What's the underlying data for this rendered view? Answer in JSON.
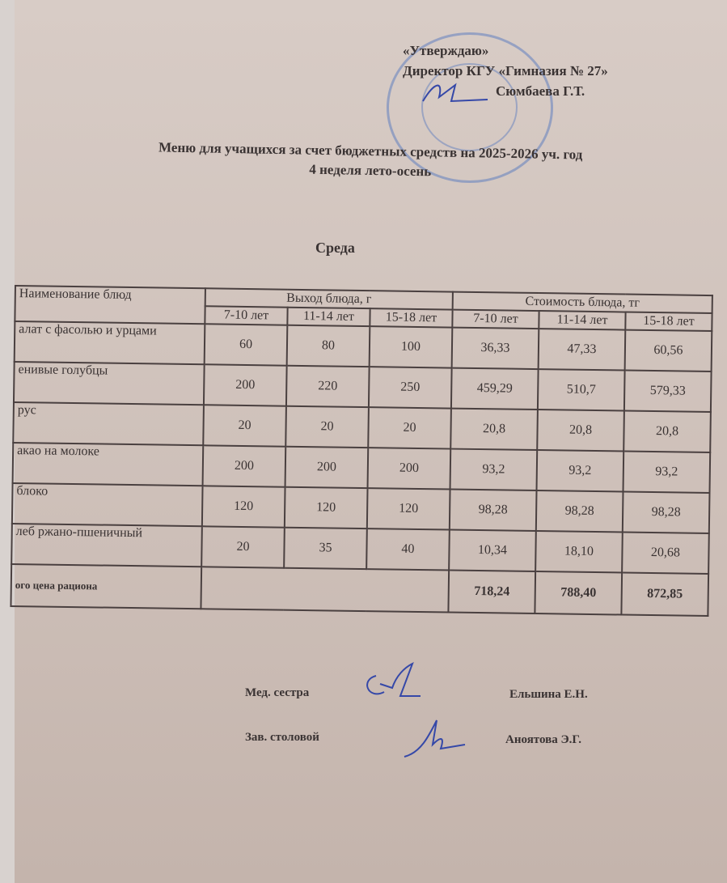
{
  "approval": {
    "line1": "«Утверждаю»",
    "line2": "Директор КГУ «Гимназия № 27»",
    "line3": "Сюмбаева Г.Т."
  },
  "title": {
    "line1": "Меню для учащихся за счет бюджетных средств на 2025-2026 уч. год",
    "line2": "4 неделя    лето-осень"
  },
  "day": "Среда",
  "table": {
    "col_name": "Наименование блюд",
    "group_yield": "Выход блюда, г",
    "group_cost": "Стоимость блюда, тг",
    "ages": [
      "7-10 лет",
      "11-14 лет",
      "15-18 лет"
    ],
    "rows": [
      {
        "name": "алат с фасолью и урцами",
        "yield": [
          "60",
          "80",
          "100"
        ],
        "cost": [
          "36,33",
          "47,33",
          "60,56"
        ]
      },
      {
        "name": "енивые голубцы",
        "yield": [
          "200",
          "220",
          "250"
        ],
        "cost": [
          "459,29",
          "510,7",
          "579,33"
        ]
      },
      {
        "name": "рус",
        "yield": [
          "20",
          "20",
          "20"
        ],
        "cost": [
          "20,8",
          "20,8",
          "20,8"
        ]
      },
      {
        "name": "акао на молоке",
        "yield": [
          "200",
          "200",
          "200"
        ],
        "cost": [
          "93,2",
          "93,2",
          "93,2"
        ]
      },
      {
        "name": "блоко",
        "yield": [
          "120",
          "120",
          "120"
        ],
        "cost": [
          "98,28",
          "98,28",
          "98,28"
        ]
      },
      {
        "name": "леб ржано-пшеничный",
        "yield": [
          "20",
          "35",
          "40"
        ],
        "cost": [
          "10,34",
          "18,10",
          "20,68"
        ]
      }
    ],
    "total": {
      "label": "ого цена рациона",
      "cost": [
        "718,24",
        "788,40",
        "872,85"
      ]
    }
  },
  "signatures": [
    {
      "role": "Мед. сестра",
      "name": "Ельшина Е.Н."
    },
    {
      "role": "Зав. столовой",
      "name": "Аноятова Э.Г."
    }
  ]
}
